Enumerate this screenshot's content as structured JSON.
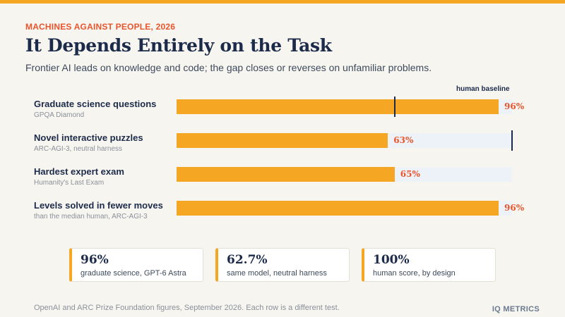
{
  "header": {
    "eyebrow": "MACHINES AGAINST PEOPLE, 2026",
    "title": "It Depends Entirely on the Task",
    "subtitle": "Frontier AI leads on knowledge and code; the gap closes or reverses on unfamiliar problems."
  },
  "chart_data": {
    "type": "bar",
    "orientation": "horizontal",
    "baseline_label": "human baseline",
    "xlim": [
      0,
      100
    ],
    "categories": [
      {
        "label": "Graduate science questions",
        "source": "GPQA Diamond"
      },
      {
        "label": "Novel interactive puzzles",
        "source": "ARC-AGI-3, neutral harness"
      },
      {
        "label": "Hardest expert exam",
        "source": "Humanity's Last Exam"
      },
      {
        "label": "Levels solved in fewer moves",
        "source": "than the median human, ARC-AGI-3"
      }
    ],
    "values": [
      96,
      63,
      65,
      96
    ],
    "value_labels": [
      "96%",
      "63%",
      "65%",
      "96%"
    ],
    "human_baseline": [
      65,
      100,
      null,
      null
    ],
    "colors": {
      "bar": "#f5a623",
      "track": "#edf1f8",
      "baseline": "#1c2b4a",
      "value_text": "#e8552c"
    }
  },
  "stats": [
    {
      "value": "96%",
      "caption": "graduate science, GPT-6 Astra"
    },
    {
      "value": "62.7%",
      "caption": "same model, neutral harness"
    },
    {
      "value": "100%",
      "caption": "human score, by design"
    }
  ],
  "footer": {
    "note": "OpenAI and ARC Prize Foundation figures, September 2026. Each row is a different test.",
    "brand": "IQ METRICS"
  }
}
